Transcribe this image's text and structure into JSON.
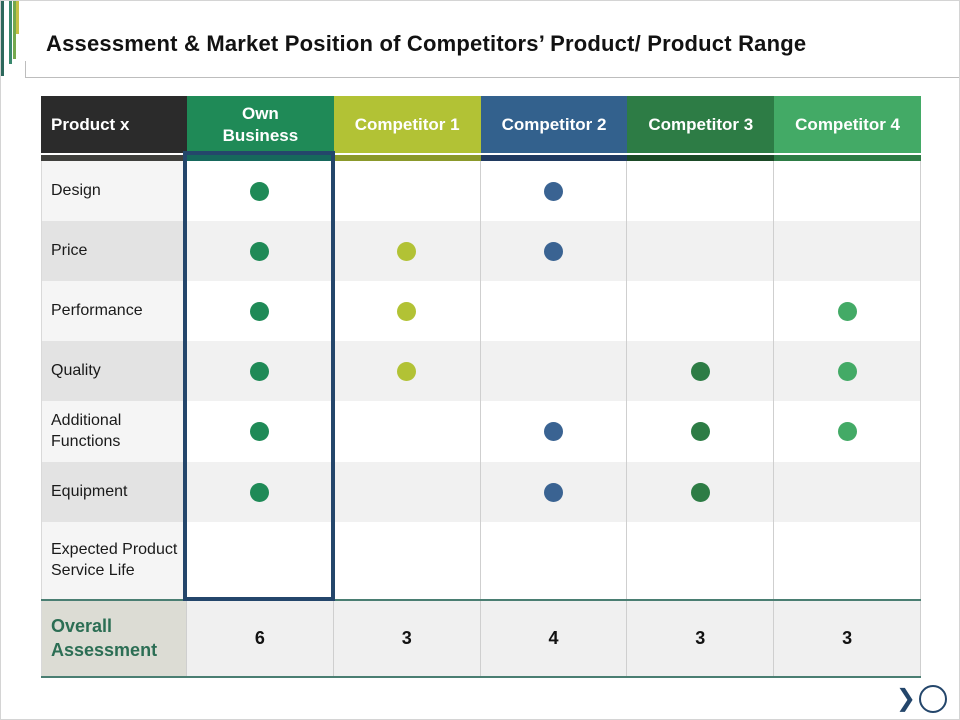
{
  "slide": {
    "title": "Assessment & Market Position of Competitors’ Product/ Product Range"
  },
  "table": {
    "columns": [
      {
        "label": "Product x",
        "bg": "#2b2b2b",
        "strip": "#3f3f3c",
        "dot": null
      },
      {
        "label": "Own\nBusiness",
        "bg": "#1f8a57",
        "strip": "#16685c",
        "dot": "#1f8a57"
      },
      {
        "label": "Competitor 1",
        "bg": "#b2c235",
        "strip": "#8b992b",
        "dot": "#b2c235"
      },
      {
        "label": "Competitor 2",
        "bg": "#33618d",
        "strip": "#203a60",
        "dot": "#3a6392"
      },
      {
        "label": "Competitor 3",
        "bg": "#2d7c45",
        "strip": "#1b4a27",
        "dot": "#2d7c45"
      },
      {
        "label": "Competitor 4",
        "bg": "#43aa66",
        "strip": "#2d7c45",
        "dot": "#43aa66"
      }
    ],
    "rows": [
      {
        "label": "Design",
        "dots": [
          1,
          0,
          1,
          0,
          0
        ]
      },
      {
        "label": "Price",
        "dots": [
          1,
          1,
          1,
          0,
          0
        ]
      },
      {
        "label": "Performance",
        "dots": [
          1,
          1,
          0,
          0,
          1
        ]
      },
      {
        "label": "Quality",
        "dots": [
          1,
          1,
          0,
          1,
          1
        ]
      },
      {
        "label": "Additional Functions",
        "dots": [
          1,
          0,
          1,
          1,
          1
        ]
      },
      {
        "label": "Equipment",
        "dots": [
          1,
          0,
          1,
          1,
          0
        ]
      },
      {
        "label": "Expected Product Service Life",
        "dots": [
          0,
          0,
          0,
          0,
          0
        ]
      }
    ],
    "summary": {
      "label": "Overall Assessment",
      "values": [
        "6",
        "3",
        "4",
        "3",
        "3"
      ]
    }
  },
  "chart_data": {
    "type": "table",
    "title": "Assessment & Market Position of Competitors’ Product/ Product Range",
    "columns": [
      "Product x",
      "Own Business",
      "Competitor 1",
      "Competitor 2",
      "Competitor 3",
      "Competitor 4"
    ],
    "rows": [
      [
        "Design",
        1,
        0,
        1,
        0,
        0
      ],
      [
        "Price",
        1,
        1,
        1,
        0,
        0
      ],
      [
        "Performance",
        1,
        1,
        0,
        0,
        1
      ],
      [
        "Quality",
        1,
        1,
        0,
        1,
        1
      ],
      [
        "Additional Functions",
        1,
        0,
        1,
        1,
        1
      ],
      [
        "Equipment",
        1,
        0,
        1,
        1,
        0
      ],
      [
        "Expected Product Service Life",
        0,
        0,
        0,
        0,
        0
      ],
      [
        "Overall Assessment",
        6,
        3,
        4,
        3,
        3
      ]
    ]
  },
  "nav": {
    "chevron_glyph": "❯"
  }
}
